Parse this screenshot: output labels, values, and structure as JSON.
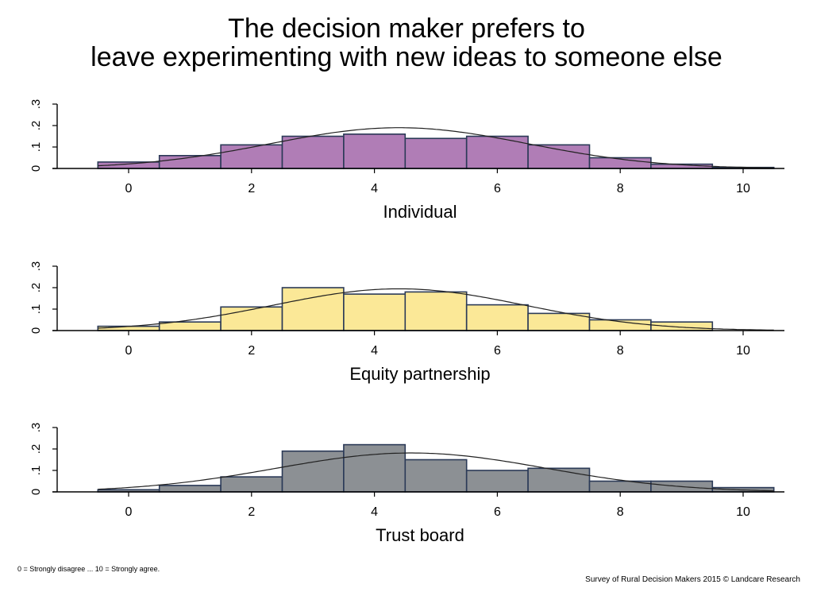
{
  "title_lines": [
    "The decision maker prefers to",
    "leave experimenting with new ideas to someone else"
  ],
  "footnote_left": "0 = Strongly disagree ... 10 = Strongly agree.",
  "footnote_right": "Survey of Rural Decision Makers 2015 © Landcare Research",
  "chart_data": [
    {
      "type": "bar",
      "xlabel": "Individual",
      "ylabel": "",
      "categories": [
        0,
        1,
        2,
        3,
        4,
        5,
        6,
        7,
        8,
        9,
        10
      ],
      "values": [
        0.03,
        0.06,
        0.11,
        0.15,
        0.16,
        0.14,
        0.15,
        0.11,
        0.05,
        0.02,
        0.005
      ],
      "ylim": [
        0,
        0.3
      ],
      "yticks": [
        0,
        0.1,
        0.2,
        0.3
      ],
      "ytick_labels": [
        "0",
        ".1",
        ".2",
        ".3"
      ],
      "xlim": [
        -1,
        10.5
      ],
      "xticks": [
        0,
        2,
        4,
        6,
        8,
        10
      ],
      "xtick_labels": [
        "0",
        "2",
        "4",
        "6",
        "8",
        "10"
      ],
      "bar_color": "#b07db6",
      "density_curve": {
        "mean": 4.4,
        "sd": 2.1
      }
    },
    {
      "type": "bar",
      "xlabel": "Equity partnership",
      "ylabel": "",
      "categories": [
        0,
        1,
        2,
        3,
        4,
        5,
        6,
        7,
        8,
        9
      ],
      "values": [
        0.02,
        0.04,
        0.11,
        0.2,
        0.17,
        0.18,
        0.12,
        0.08,
        0.05,
        0.04
      ],
      "ylim": [
        0,
        0.3
      ],
      "yticks": [
        0,
        0.1,
        0.2,
        0.3
      ],
      "ytick_labels": [
        "0",
        ".1",
        ".2",
        ".3"
      ],
      "xlim": [
        -1,
        10.5
      ],
      "xticks": [
        0,
        2,
        4,
        6,
        8,
        10
      ],
      "xtick_labels": [
        "0",
        "2",
        "4",
        "6",
        "8",
        "10"
      ],
      "bar_color": "#fbe897",
      "density_curve": {
        "mean": 4.4,
        "sd": 2.05
      }
    },
    {
      "type": "bar",
      "xlabel": "Trust board",
      "ylabel": "",
      "categories": [
        0,
        1,
        2,
        3,
        4,
        5,
        6,
        7,
        8,
        9,
        10
      ],
      "values": [
        0.01,
        0.03,
        0.07,
        0.19,
        0.22,
        0.15,
        0.1,
        0.11,
        0.05,
        0.05,
        0.02
      ],
      "ylim": [
        0,
        0.3
      ],
      "yticks": [
        0,
        0.1,
        0.2,
        0.3
      ],
      "ytick_labels": [
        "0",
        ".1",
        ".2",
        ".3"
      ],
      "xlim": [
        -1,
        10.5
      ],
      "xticks": [
        0,
        2,
        4,
        6,
        8,
        10
      ],
      "xtick_labels": [
        "0",
        "2",
        "4",
        "6",
        "8",
        "10"
      ],
      "bar_color": "#8c9094",
      "density_curve": {
        "mean": 4.6,
        "sd": 2.2
      }
    }
  ]
}
